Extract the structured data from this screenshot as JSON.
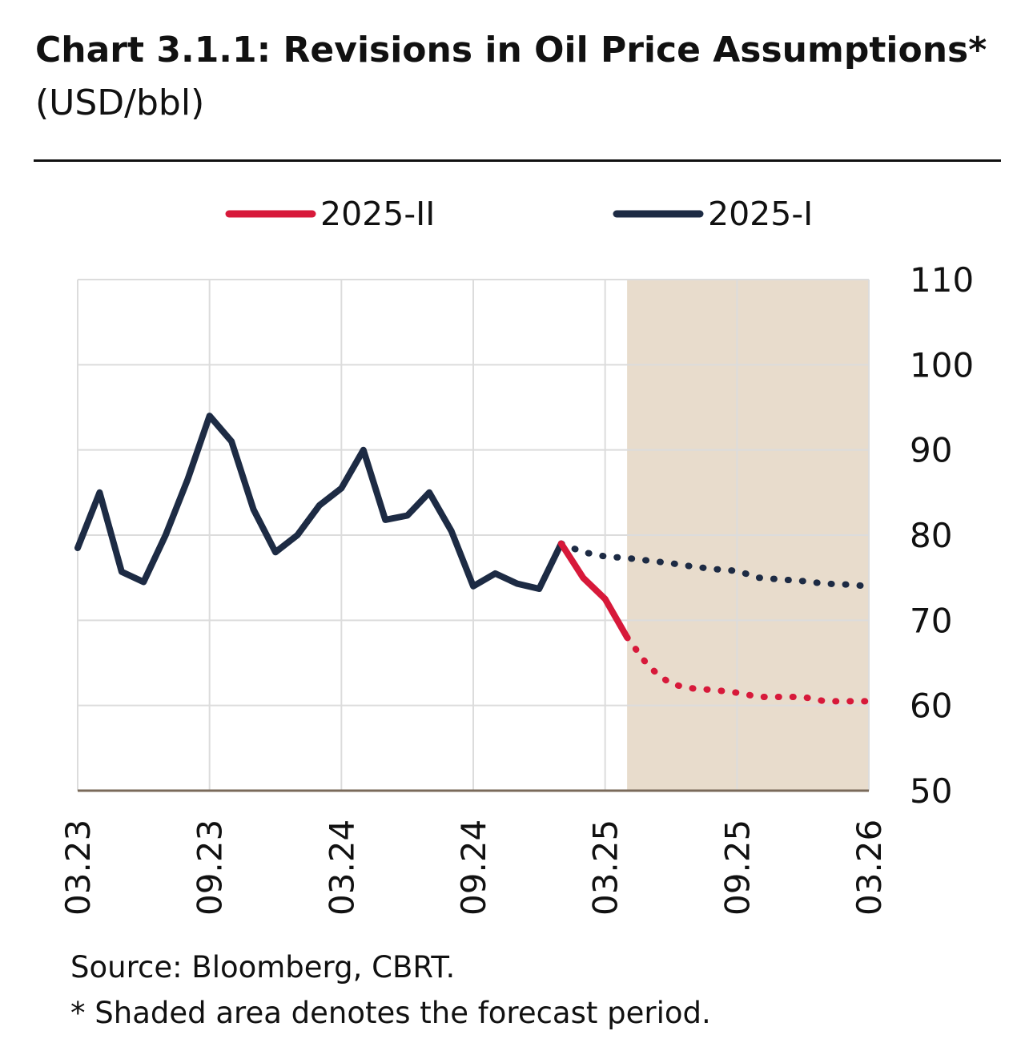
{
  "title": {
    "bold": "Chart 3.1.1: Revisions in Oil Price Assumptions*",
    "unit": "(USD/bbl)"
  },
  "legend": [
    {
      "label": "2025-II",
      "color": "#d7193a"
    },
    {
      "label": "2025-I",
      "color": "#1d2b44"
    }
  ],
  "footer": {
    "source": "Source: Bloomberg, CBRT.",
    "note": "* Shaded area denotes the forecast period."
  },
  "colors": {
    "shade": "#e8dccc",
    "grid": "#dcdcdc",
    "series_new": "#d7193a",
    "series_old": "#1d2b44"
  },
  "chart_data": {
    "type": "line",
    "title": "Chart 3.1.1: Revisions in Oil Price Assumptions* (USD/bbl)",
    "xlabel": "",
    "ylabel": "USD/bbl",
    "x_unit": "months since 03.23",
    "xlim": [
      0,
      36
    ],
    "ylim": [
      50,
      110
    ],
    "y_ticks": [
      50,
      60,
      70,
      80,
      90,
      100,
      110
    ],
    "x_ticks": [
      {
        "x": 0,
        "label": "03.23"
      },
      {
        "x": 6,
        "label": "09.23"
      },
      {
        "x": 12,
        "label": "03.24"
      },
      {
        "x": 18,
        "label": "09.24"
      },
      {
        "x": 24,
        "label": "03.25"
      },
      {
        "x": 30,
        "label": "09.25"
      },
      {
        "x": 36,
        "label": "03.26"
      }
    ],
    "forecast_shade": [
      25,
      36
    ],
    "grid": true,
    "legend_position": "top",
    "history": {
      "x": [
        0,
        1,
        2,
        3,
        4,
        5,
        6,
        7,
        8,
        9,
        10,
        11,
        12,
        13,
        14,
        15,
        16,
        17,
        18,
        19,
        20,
        21,
        22
      ],
      "values": [
        78.5,
        85,
        75.7,
        74.5,
        80,
        86.5,
        94,
        91,
        83,
        78,
        80,
        83.5,
        85.5,
        90,
        81.8,
        82.3,
        85,
        80.5,
        74,
        75.5,
        74.3,
        73.7,
        79
      ]
    },
    "series": [
      {
        "name": "2025-II",
        "actual_x": [
          22,
          23,
          24,
          25
        ],
        "actual_values": [
          79,
          75,
          72.5,
          68
        ],
        "forecast_x": [
          25,
          26,
          27,
          28,
          29,
          30,
          31,
          32,
          33,
          34,
          35,
          36
        ],
        "forecast_values": [
          68,
          64.5,
          62.5,
          62,
          61.8,
          61.5,
          61,
          61,
          61,
          60.5,
          60.5,
          60.5
        ]
      },
      {
        "name": "2025-I",
        "forecast_x": [
          22,
          23,
          24,
          25,
          26,
          27,
          28,
          29,
          30,
          31,
          32,
          33,
          34,
          35,
          36
        ],
        "forecast_values": [
          79,
          78,
          77.5,
          77.3,
          77,
          76.7,
          76.3,
          76,
          75.8,
          75,
          74.8,
          74.6,
          74.3,
          74.2,
          74
        ]
      }
    ]
  }
}
